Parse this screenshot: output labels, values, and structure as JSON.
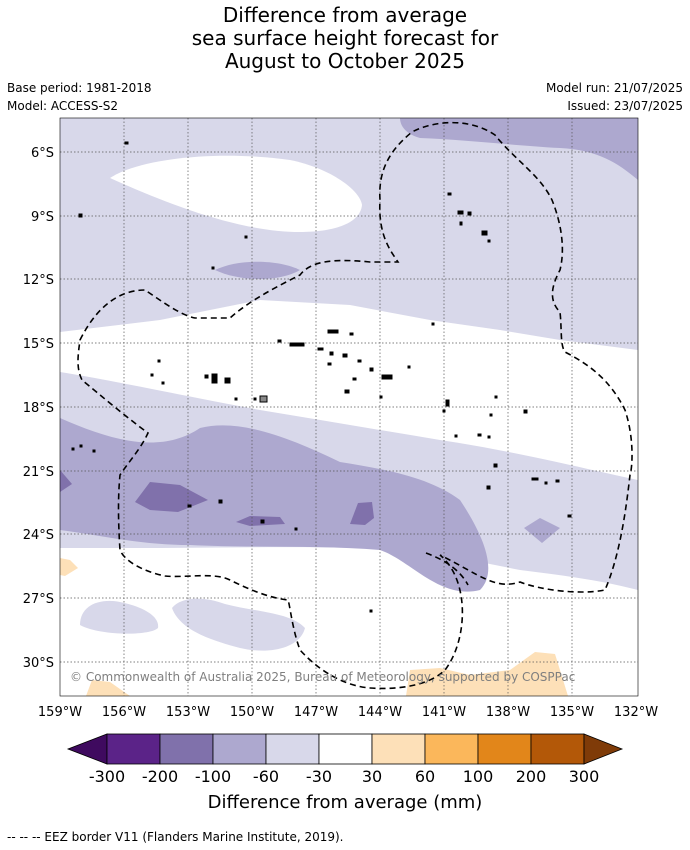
{
  "title_lines": [
    "Difference from average",
    "sea surface height forecast for",
    "August to October 2025"
  ],
  "meta": {
    "base_period": "Base period: 1981-2018",
    "model": "Model: ACCESS-S2",
    "model_run": "Model run: 21/07/2025",
    "issued": "Issued: 23/07/2025"
  },
  "map": {
    "lat_ticks": [
      "6°S",
      "9°S",
      "12°S",
      "15°S",
      "18°S",
      "21°S",
      "24°S",
      "27°S",
      "30°S"
    ],
    "lon_ticks": [
      "159°W",
      "156°W",
      "153°W",
      "150°W",
      "147°W",
      "144°W",
      "141°W",
      "138°W",
      "135°W",
      "132°W"
    ],
    "copyright": "© Commonwealth of Australia 2025, Bureau of Meteorology, supported by COSPPac"
  },
  "colorbar": {
    "label": "Difference from average (mm)",
    "ticks": [
      "-300",
      "-200",
      "-100",
      "-60",
      "-30",
      "30",
      "60",
      "100",
      "200",
      "300"
    ],
    "colors": [
      "#3f0a5f",
      "#5b2388",
      "#8071ab",
      "#ada8cf",
      "#d8d8ea",
      "#ffffff",
      "#fde0b8",
      "#fbb75b",
      "#e2861a",
      "#b35808",
      "#7f3b08"
    ]
  },
  "footnote": "-- -- -- EEZ border V11 (Flanders Marine Institute, 2019)."
}
